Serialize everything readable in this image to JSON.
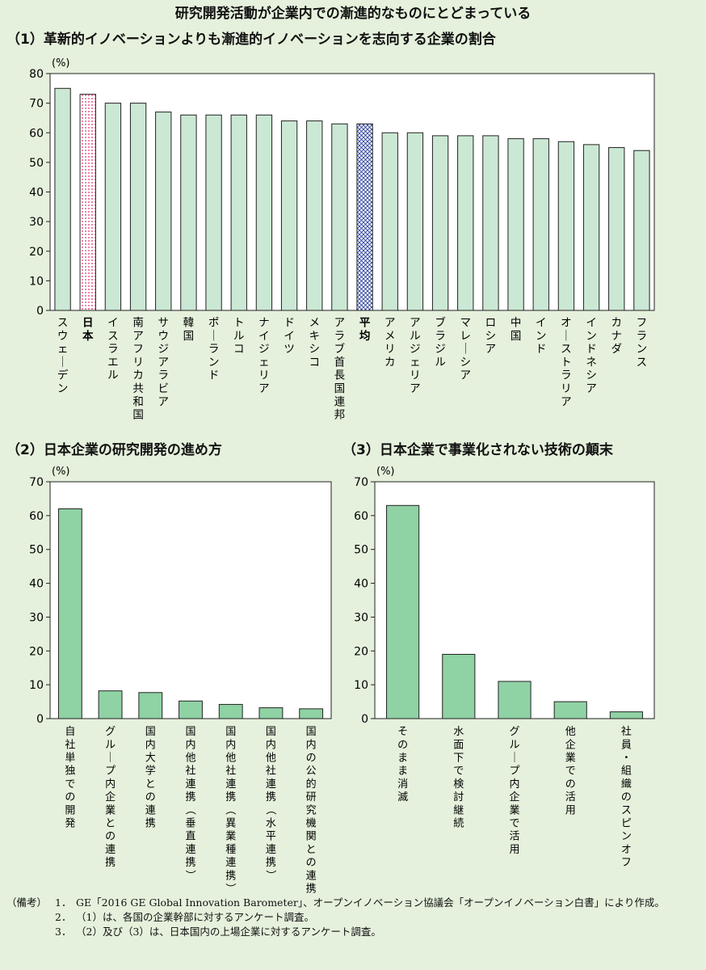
{
  "title": "研究開発活動が企業内での漸進的なものにとどまっている",
  "chart_data": [
    {
      "type": "bar",
      "title": "（1）革新的イノベーションよりも漸進的イノベーションを志向する企業の割合",
      "unit_label": "(%)",
      "ylim": [
        0,
        80
      ],
      "yticks": [
        0,
        10,
        20,
        30,
        40,
        50,
        60,
        70,
        80
      ],
      "categories": [
        "スウェーデン",
        "日本",
        "イスラエル",
        "南アフリカ共和国",
        "サウジアラビア",
        "韓国",
        "ポーランド",
        "トルコ",
        "ナイジェリア",
        "ドイツ",
        "メキシコ",
        "アラブ首長国連邦",
        "平均",
        "アメリカ",
        "アルジェリア",
        "ブラジル",
        "マレーシア",
        "ロシア",
        "中国",
        "インド",
        "オーストラリア",
        "インドネシア",
        "カナダ",
        "フランス"
      ],
      "values": [
        75,
        73,
        70,
        70,
        67,
        66,
        66,
        66,
        66,
        64,
        64,
        63,
        63,
        60,
        60,
        59,
        59,
        59,
        58,
        58,
        57,
        56,
        55,
        54
      ],
      "highlight": {
        "日本": "dotted-pink",
        "平均": "crosshatch-blue"
      },
      "bold_categories": [
        "日本",
        "平均"
      ],
      "bar_color": "#cbe8d4",
      "grid": false
    },
    {
      "type": "bar",
      "title": "（2）日本企業の研究開発の進め方",
      "unit_label": "(%)",
      "ylim": [
        0,
        70
      ],
      "yticks": [
        0,
        10,
        20,
        30,
        40,
        50,
        60,
        70
      ],
      "categories": [
        "自社単独での開発",
        "グループ内企業との連携",
        "国内大学との連携",
        "国内他社連携（垂直連携）",
        "国内他社連携（異業種連携）",
        "国内他社連携（水平連携）",
        "国内の公的研究機関との連携"
      ],
      "values": [
        62,
        8.2,
        7.7,
        5.2,
        4.2,
        3.2,
        2.9
      ],
      "bar_color": "#8fd2a4",
      "grid": false
    },
    {
      "type": "bar",
      "title": "（3）日本企業で事業化されない技術の顛末",
      "unit_label": "(%)",
      "ylim": [
        0,
        70
      ],
      "yticks": [
        0,
        10,
        20,
        30,
        40,
        50,
        60,
        70
      ],
      "categories": [
        "そのまま消滅",
        "水面下で検討継続",
        "グループ内企業で活用",
        "他企業での活用",
        "社員・組織のスピンオフ"
      ],
      "values": [
        63,
        19,
        11,
        5,
        2
      ],
      "bar_color": "#8fd2a4",
      "grid": false
    }
  ],
  "notes": {
    "label": "（備考）",
    "items": [
      {
        "num": "1．",
        "text": "GE「2016 GE Global Innovation Barometer」、オープンイノベーション協議会「オープンイノベーション白書」により作成。"
      },
      {
        "num": "2．",
        "text": "（1）は、各国の企業幹部に対するアンケート調査。"
      },
      {
        "num": "3．",
        "text": "（2）及び（3）は、日本国内の上場企業に対するアンケート調査。"
      }
    ]
  }
}
